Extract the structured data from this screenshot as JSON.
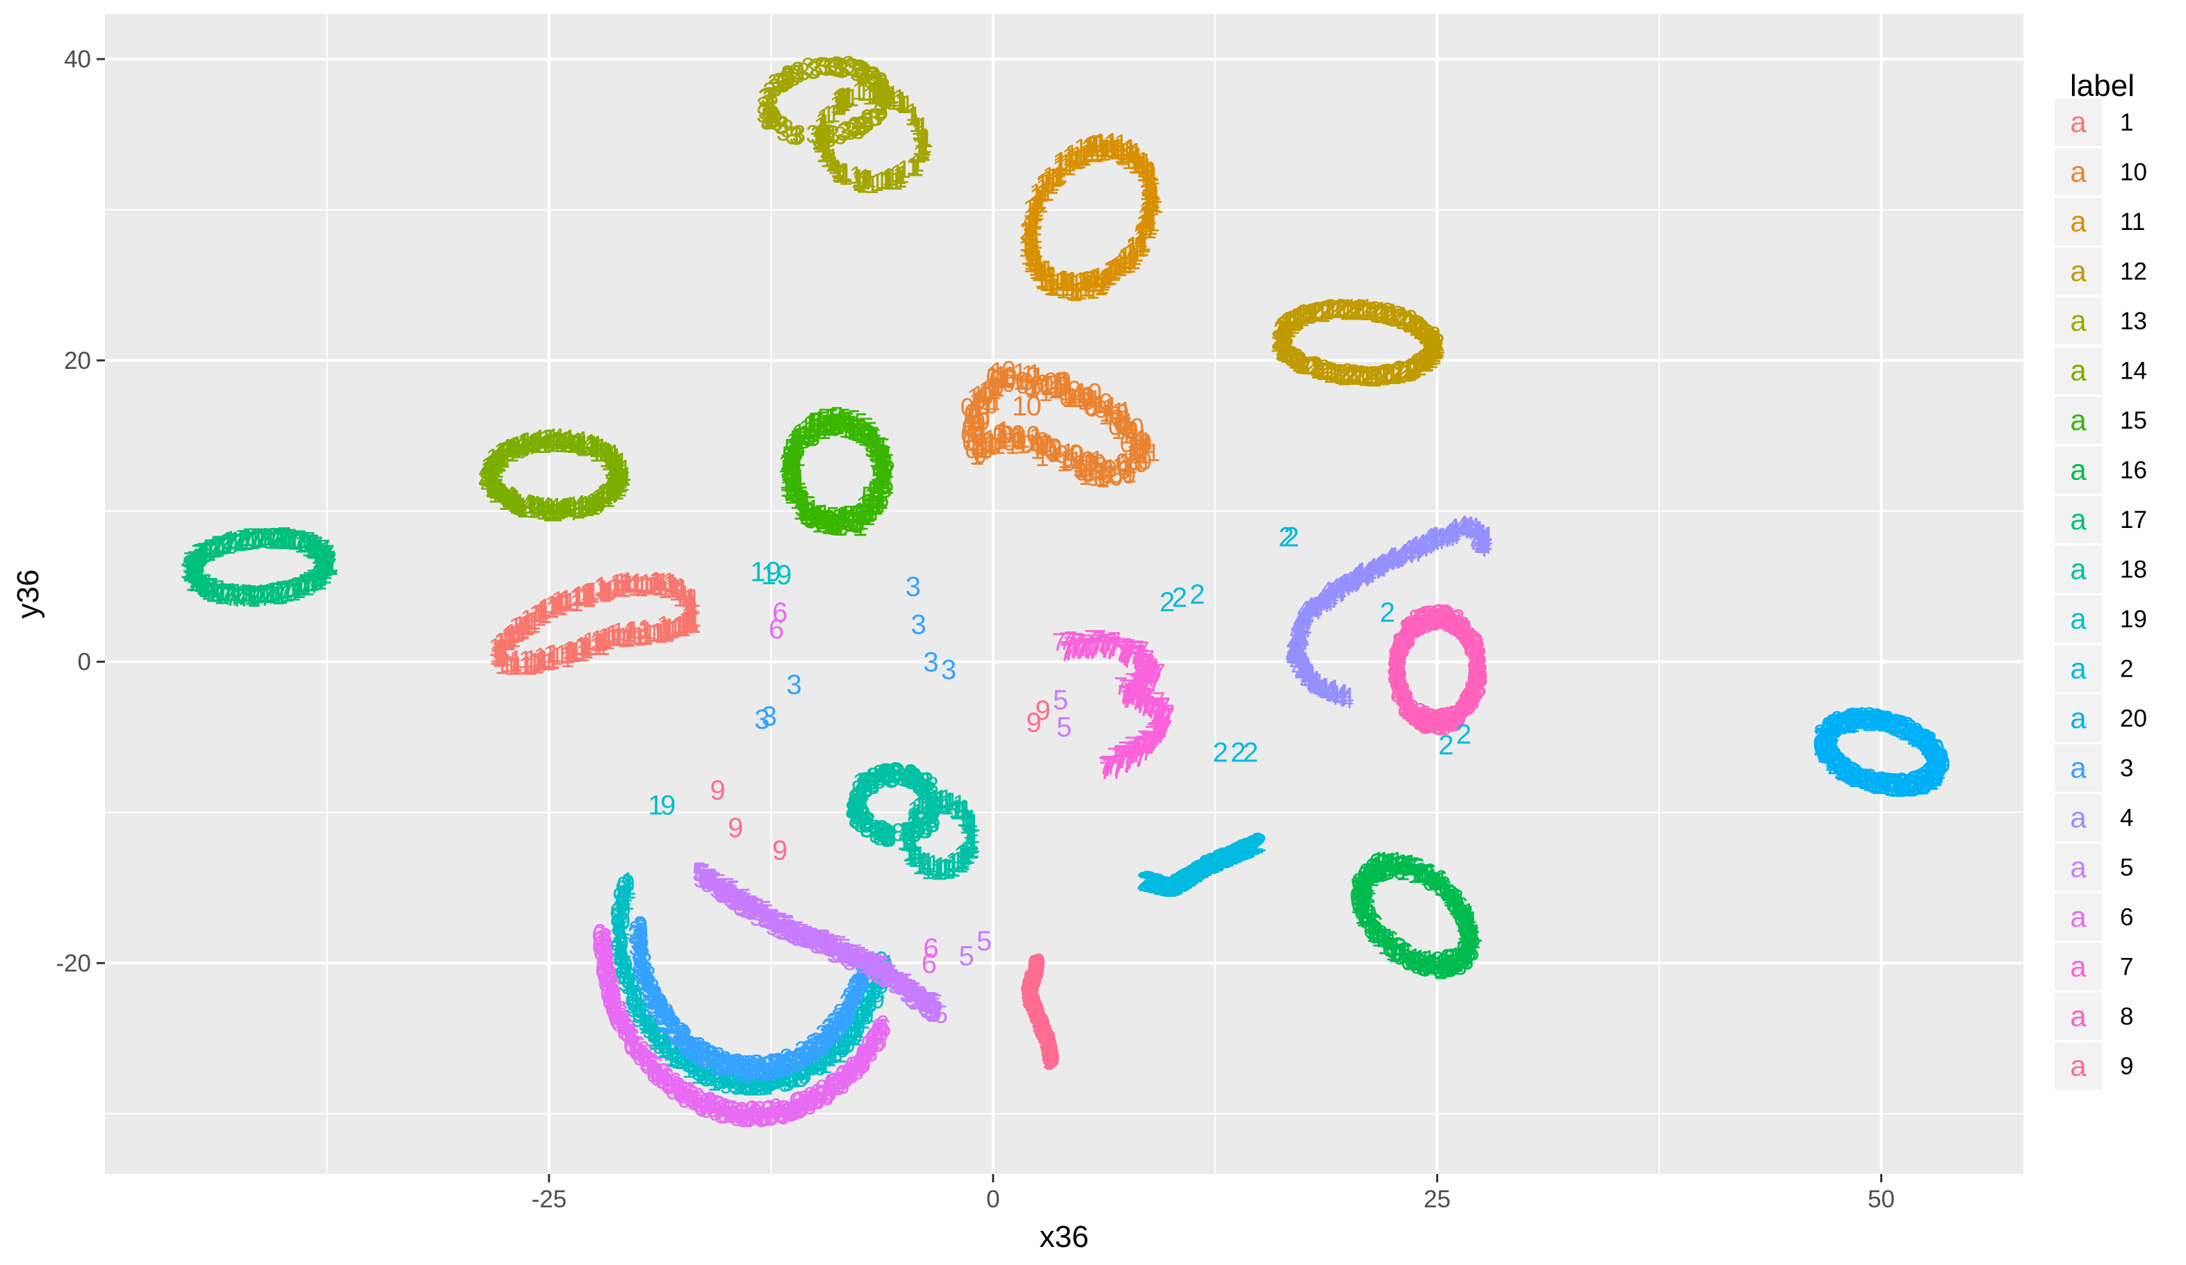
{
  "chart_data": {
    "type": "scatter",
    "title": "",
    "xlabel": "x36",
    "ylabel": "y36",
    "xlim": [
      -50,
      58
    ],
    "ylim": [
      -34,
      43
    ],
    "x_ticks": [
      -25,
      0,
      25,
      50
    ],
    "y_ticks": [
      -20,
      0,
      20,
      40
    ],
    "x_tick_labels": [
      "-25",
      "0",
      "25",
      "50"
    ],
    "y_tick_labels": [
      "-20",
      "0",
      "20",
      "40"
    ],
    "grid": true,
    "legend": {
      "title": "label",
      "placement": "right",
      "key_glyph": "a",
      "entries": [
        {
          "label": "1",
          "color": "#F8766D"
        },
        {
          "label": "10",
          "color": "#EA8331"
        },
        {
          "label": "11",
          "color": "#D89000"
        },
        {
          "label": "12",
          "color": "#C09B00"
        },
        {
          "label": "13",
          "color": "#A3A500"
        },
        {
          "label": "14",
          "color": "#7CAE00"
        },
        {
          "label": "15",
          "color": "#39B600"
        },
        {
          "label": "16",
          "color": "#00BB4E"
        },
        {
          "label": "17",
          "color": "#00BF7D"
        },
        {
          "label": "18",
          "color": "#00C1A3"
        },
        {
          "label": "19",
          "color": "#00BFC4"
        },
        {
          "label": "2",
          "color": "#00BAE0"
        },
        {
          "label": "20",
          "color": "#00B0F6"
        },
        {
          "label": "3",
          "color": "#35A2FF"
        },
        {
          "label": "4",
          "color": "#9590FF"
        },
        {
          "label": "5",
          "color": "#C77CFF"
        },
        {
          "label": "6",
          "color": "#E76BF3"
        },
        {
          "label": "7",
          "color": "#FA62DB"
        },
        {
          "label": "8",
          "color": "#FF62BC"
        },
        {
          "label": "9",
          "color": "#FF6C91"
        }
      ]
    },
    "series": [
      {
        "name": "1",
        "glyphs": [
          "1",
          "1"
        ],
        "shape": "polyline",
        "closed": true,
        "width": 0.6,
        "points": [
          [
            -28,
            0.5
          ],
          [
            -27,
            2
          ],
          [
            -25,
            3.5
          ],
          [
            -22,
            4.8
          ],
          [
            -20,
            5.2
          ],
          [
            -18,
            5
          ],
          [
            -17,
            4
          ],
          [
            -17,
            2.5
          ],
          [
            -19,
            2
          ],
          [
            -21,
            1.8
          ],
          [
            -24,
            0.5
          ],
          [
            -26,
            0
          ],
          [
            -27.5,
            0
          ]
        ]
      },
      {
        "name": "10",
        "glyphs": [
          "1",
          "0"
        ],
        "shape": "polyline",
        "closed": true,
        "width": 1.1,
        "points": [
          [
            -1,
            14
          ],
          [
            -1,
            17
          ],
          [
            0.5,
            19
          ],
          [
            3,
            18.5
          ],
          [
            5.5,
            17.5
          ],
          [
            7.5,
            16
          ],
          [
            8.5,
            14
          ],
          [
            7,
            12.5
          ],
          [
            5,
            13
          ],
          [
            2.5,
            14.5
          ],
          [
            0.5,
            15
          ],
          [
            -1,
            14
          ]
        ]
      },
      {
        "name": "11",
        "glyphs": [
          "1",
          "1"
        ],
        "shape": "ellipse",
        "cx": 5.5,
        "cy": 29.5,
        "rx": 3.2,
        "ry": 4.8,
        "rot": -20,
        "band": 0.9
      },
      {
        "name": "12",
        "glyphs": [
          "1",
          "2"
        ],
        "shape": "ellipse",
        "cx": 20.5,
        "cy": 21.2,
        "rx": 4.3,
        "ry": 2.2,
        "rot": -5,
        "band": 0.6
      },
      {
        "name": "13",
        "glyphs": [
          "1",
          "3"
        ],
        "shape": "twin",
        "a": {
          "cx": -9.5,
          "cy": 37.2,
          "rx": 3.3,
          "ry": 2.3,
          "rot": 10
        },
        "b": {
          "cx": -6.8,
          "cy": 34.8,
          "rx": 2.8,
          "ry": 3,
          "rot": 25
        },
        "band": 0.5
      },
      {
        "name": "14",
        "glyphs": [
          "1",
          "4"
        ],
        "shape": "ellipse",
        "cx": -24.7,
        "cy": 12.4,
        "rx": 3.6,
        "ry": 2.3,
        "rot": 0,
        "band": 0.7
      },
      {
        "name": "15",
        "glyphs": [
          "1",
          "5"
        ],
        "shape": "ellipse",
        "cx": -8.8,
        "cy": 12.6,
        "rx": 2.6,
        "ry": 3.3,
        "rot": 0,
        "band": 0.9
      },
      {
        "name": "16",
        "glyphs": [
          "1",
          "6"
        ],
        "shape": "ellipse",
        "cx": 23.8,
        "cy": -16.8,
        "rx": 2.4,
        "ry": 3.8,
        "rot": 40,
        "band": 0.9
      },
      {
        "name": "17",
        "glyphs": [
          "1",
          "7"
        ],
        "shape": "ellipse",
        "cx": -41.3,
        "cy": 6.3,
        "rx": 3.8,
        "ry": 1.9,
        "rot": 5,
        "band": 0.7
      },
      {
        "name": "18",
        "glyphs": [
          "1",
          "8"
        ],
        "shape": "twin",
        "a": {
          "cx": -5.5,
          "cy": -9.5,
          "rx": 2.2,
          "ry": 2,
          "rot": 0
        },
        "b": {
          "cx": -3,
          "cy": -11.5,
          "rx": 1.8,
          "ry": 2.2,
          "rot": 0
        },
        "band": 0.6
      },
      {
        "name": "19",
        "glyphs": [
          "1",
          "9"
        ],
        "shape": "arc",
        "cx": -13.5,
        "cy": -18,
        "rx": 7.5,
        "ry": 10,
        "start": 160,
        "end": 350,
        "width": 0.7
      },
      {
        "name": "2",
        "glyphs": [
          "2",
          "2"
        ],
        "shape": "polyline",
        "closed": false,
        "width": 0.2,
        "points": [
          [
            8.5,
            -14.5
          ],
          [
            10,
            -15
          ],
          [
            12,
            -13.5
          ],
          [
            14,
            -12.5
          ],
          [
            15,
            -12
          ]
        ]
      },
      {
        "name": "20",
        "glyphs": [
          "2",
          "0"
        ],
        "shape": "ellipse",
        "cx": 50,
        "cy": -6,
        "rx": 3.3,
        "ry": 2,
        "rot": -20,
        "band": 0.7
      },
      {
        "name": "3",
        "glyphs": [
          "3",
          "3"
        ],
        "shape": "arc",
        "cx": -13.5,
        "cy": -17.5,
        "rx": 6.5,
        "ry": 9.5,
        "start": 180,
        "end": 345,
        "width": 0.7
      },
      {
        "name": "4",
        "glyphs": [
          "4",
          "4"
        ],
        "shape": "polyline",
        "closed": false,
        "width": 0.5,
        "points": [
          [
            19.8,
            -2.3
          ],
          [
            18,
            -1.5
          ],
          [
            17,
            0.5
          ],
          [
            17.5,
            3
          ],
          [
            19.5,
            5
          ],
          [
            22,
            6.5
          ],
          [
            24.5,
            8
          ],
          [
            26.5,
            9
          ],
          [
            27.5,
            8.5
          ],
          [
            27.5,
            7.5
          ]
        ]
      },
      {
        "name": "5",
        "glyphs": [
          "5",
          "5"
        ],
        "shape": "polyline",
        "closed": false,
        "width": 0.6,
        "points": [
          [
            -16.5,
            -14
          ],
          [
            -14,
            -16
          ],
          [
            -12,
            -17.5
          ],
          [
            -9,
            -19
          ],
          [
            -7,
            -20
          ],
          [
            -5,
            -21.5
          ],
          [
            -4,
            -22.5
          ],
          [
            -3,
            -23.2
          ]
        ]
      },
      {
        "name": "6",
        "glyphs": [
          "6",
          "6"
        ],
        "shape": "arc",
        "cx": -13.5,
        "cy": -18,
        "rx": 8.5,
        "ry": 12,
        "start": 180,
        "end": 330,
        "width": 0.7
      },
      {
        "name": "7",
        "glyphs": [
          "7",
          "7"
        ],
        "shape": "polyline",
        "closed": false,
        "width": 0.8,
        "points": [
          [
            4,
            1
          ],
          [
            6,
            1.2
          ],
          [
            8,
            0.5
          ],
          [
            9,
            -1
          ],
          [
            7.5,
            -2
          ],
          [
            9.5,
            -3
          ],
          [
            9.5,
            -4.5
          ],
          [
            8,
            -6
          ],
          [
            6.5,
            -7
          ]
        ]
      },
      {
        "name": "8",
        "glyphs": [
          "8",
          "8"
        ],
        "shape": "ellipse",
        "cx": 25,
        "cy": -0.5,
        "rx": 2.3,
        "ry": 3.5,
        "rot": 0,
        "band": 0.7
      },
      {
        "name": "9",
        "glyphs": [
          "9",
          "9"
        ],
        "shape": "polyline",
        "closed": false,
        "width": 0.3,
        "points": [
          [
            2.5,
            -20
          ],
          [
            2,
            -22
          ],
          [
            2.5,
            -23.5
          ],
          [
            3,
            -25
          ],
          [
            3.3,
            -26.5
          ]
        ]
      }
    ],
    "text_points": [
      {
        "label": "9",
        "color": "#FF6C91",
        "x": -15.5,
        "y": -8.5
      },
      {
        "label": "9",
        "color": "#FF6C91",
        "x": -14.5,
        "y": -11
      },
      {
        "label": "9",
        "color": "#FF6C91",
        "x": -12,
        "y": -12.5
      },
      {
        "label": "9",
        "color": "#FF6C91",
        "x": 2.3,
        "y": -4
      },
      {
        "label": "9",
        "color": "#FF6C91",
        "x": 2.8,
        "y": -3.2
      },
      {
        "label": "19",
        "color": "#00BFC4",
        "x": -12.8,
        "y": 6
      },
      {
        "label": "19",
        "color": "#00BFC4",
        "x": -12.2,
        "y": 5.8
      },
      {
        "label": "6",
        "color": "#E76BF3",
        "x": -12,
        "y": 3.3
      },
      {
        "label": "6",
        "color": "#E76BF3",
        "x": -12.2,
        "y": 2.2
      },
      {
        "label": "6",
        "color": "#E76BF3",
        "x": -3.5,
        "y": -19
      },
      {
        "label": "6",
        "color": "#E76BF3",
        "x": -3.6,
        "y": -20
      },
      {
        "label": "3",
        "color": "#35A2FF",
        "x": -11.2,
        "y": -1.5
      },
      {
        "label": "3",
        "color": "#35A2FF",
        "x": -13,
        "y": -3.8
      },
      {
        "label": "3",
        "color": "#35A2FF",
        "x": -12.6,
        "y": -3.6
      },
      {
        "label": "3",
        "color": "#35A2FF",
        "x": -4.5,
        "y": 5
      },
      {
        "label": "3",
        "color": "#35A2FF",
        "x": -4.2,
        "y": 2.5
      },
      {
        "label": "3",
        "color": "#35A2FF",
        "x": -3.5,
        "y": 0
      },
      {
        "label": "3",
        "color": "#35A2FF",
        "x": -2.5,
        "y": -0.5
      },
      {
        "label": "5",
        "color": "#C77CFF",
        "x": 3.8,
        "y": -2.5
      },
      {
        "label": "5",
        "color": "#C77CFF",
        "x": 4,
        "y": -4.3
      },
      {
        "label": "5",
        "color": "#C77CFF",
        "x": -1.5,
        "y": -19.5
      },
      {
        "label": "5",
        "color": "#C77CFF",
        "x": -0.5,
        "y": -18.5
      },
      {
        "label": "2",
        "color": "#00BAE0",
        "x": 16.5,
        "y": 8.3
      },
      {
        "label": "2",
        "color": "#00BAE0",
        "x": 16.8,
        "y": 8.3
      },
      {
        "label": "2",
        "color": "#00BAE0",
        "x": 22.2,
        "y": 3.3
      },
      {
        "label": "2",
        "color": "#00BAE0",
        "x": 9.8,
        "y": 4
      },
      {
        "label": "2",
        "color": "#00BAE0",
        "x": 10.5,
        "y": 4.3
      },
      {
        "label": "2",
        "color": "#00BAE0",
        "x": 11.5,
        "y": 4.5
      },
      {
        "label": "2",
        "color": "#00BAE0",
        "x": 12.8,
        "y": -6
      },
      {
        "label": "2",
        "color": "#00BAE0",
        "x": 13.8,
        "y": -6
      },
      {
        "label": "2",
        "color": "#00BAE0",
        "x": 14.5,
        "y": -6
      },
      {
        "label": "2",
        "color": "#00BAE0",
        "x": 25.5,
        "y": -5.5
      },
      {
        "label": "2",
        "color": "#00BAE0",
        "x": 26.5,
        "y": -4.8
      },
      {
        "label": "1",
        "color": "#00BFC4",
        "x": -19,
        "y": -9.5
      },
      {
        "label": "9",
        "color": "#00BFC4",
        "x": -18.3,
        "y": -9.5
      },
      {
        "label": "1",
        "color": "#00C1A3",
        "x": -7.5,
        "y": -8
      },
      {
        "label": "8",
        "color": "#00C1A3",
        "x": -6.8,
        "y": -8
      },
      {
        "label": "1",
        "color": "#39B600",
        "x": -7.5,
        "y": 9
      },
      {
        "label": "5",
        "color": "#39B600",
        "x": -7,
        "y": 11
      },
      {
        "label": "1",
        "color": "#EA8331",
        "x": 1.5,
        "y": 17
      },
      {
        "label": "0",
        "color": "#EA8331",
        "x": 2.3,
        "y": 17
      }
    ]
  }
}
